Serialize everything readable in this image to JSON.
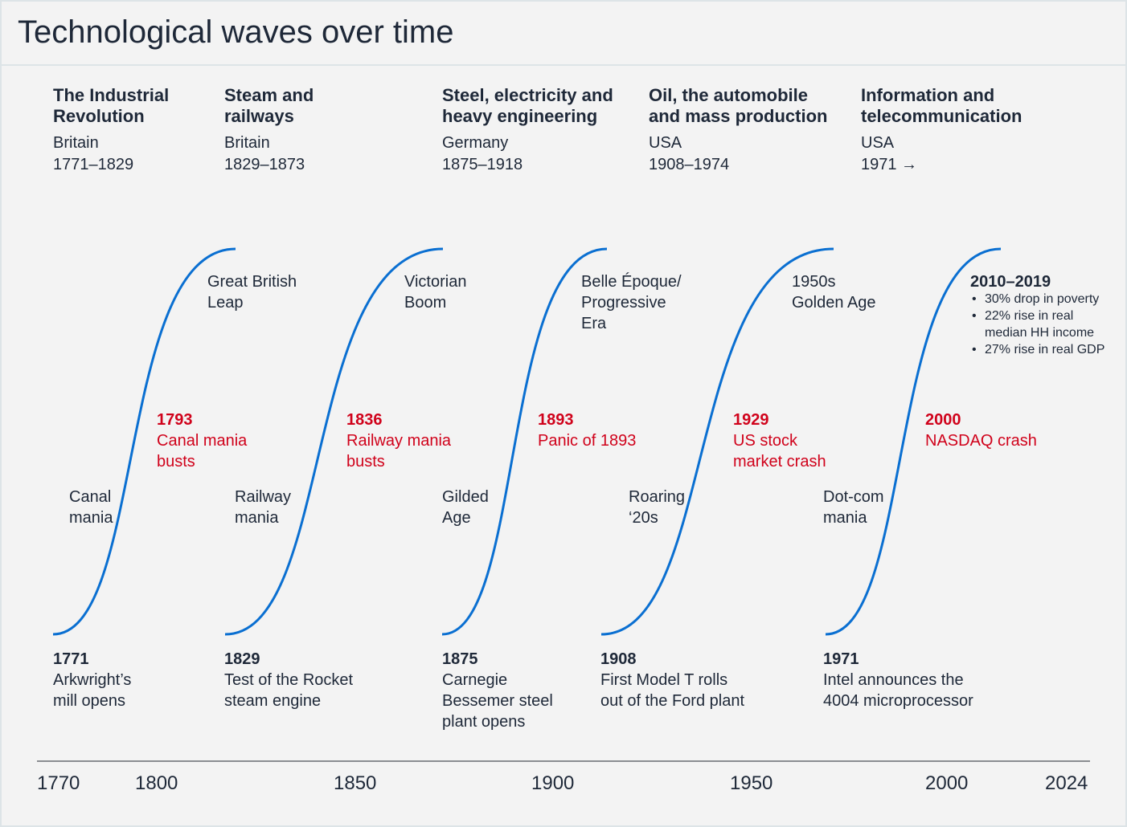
{
  "title": "Technological waves over time",
  "colors": {
    "curve": "#0a6fd1",
    "crash": "#d0021b",
    "text": "#1e2838",
    "axis": "#8a8d91"
  },
  "waves": [
    {
      "name": "The Industrial\nRevolution",
      "country": "Britain",
      "period": "1771–1829",
      "upper": "Great British\nLeap",
      "crash_year": "1793",
      "crash": "Canal mania\nbusts",
      "lower": "Canal\nmania",
      "start_year": "1771",
      "start_event": "Arkwright’s\nmill opens"
    },
    {
      "name": "Steam and\nrailways",
      "country": "Britain",
      "period": "1829–1873",
      "upper": "Victorian\nBoom",
      "crash_year": "1836",
      "crash": "Railway mania\nbusts",
      "lower": "Railway\nmania",
      "start_year": "1829",
      "start_event": "Test of the Rocket\nsteam engine"
    },
    {
      "name": "Steel, electricity and\nheavy engineering",
      "country": "Germany",
      "period": "1875–1918",
      "upper": "Belle Époque/\nProgressive\nEra",
      "crash_year": "1893",
      "crash": "Panic of 1893",
      "lower": "Gilded\nAge",
      "start_year": "1875",
      "start_event": "Carnegie\nBessemer steel\nplant opens"
    },
    {
      "name": "Oil, the automobile\nand mass production",
      "country": "USA",
      "period": "1908–1974",
      "upper": "1950s\nGolden Age",
      "crash_year": "1929",
      "crash": "US stock\nmarket crash",
      "lower": "Roaring\n‘20s",
      "start_year": "1908",
      "start_event": "First Model T rolls\nout of the Ford plant"
    },
    {
      "name": "Information and\ntelecommunication",
      "country": "USA",
      "period": "1971 →",
      "upper": "2010–2019",
      "crash_year": "2000",
      "crash": "NASDAQ crash",
      "lower": "Dot-com\nmania",
      "start_year": "1971",
      "start_event": "Intel announces the\n4004 microprocessor",
      "bullets": [
        "30% drop in poverty",
        "22% rise in real\nmedian HH income",
        "27% rise in real GDP"
      ]
    }
  ],
  "axis": {
    "ticks": [
      "1770",
      "1800",
      "1850",
      "1900",
      "1950",
      "2000",
      "2024"
    ]
  }
}
